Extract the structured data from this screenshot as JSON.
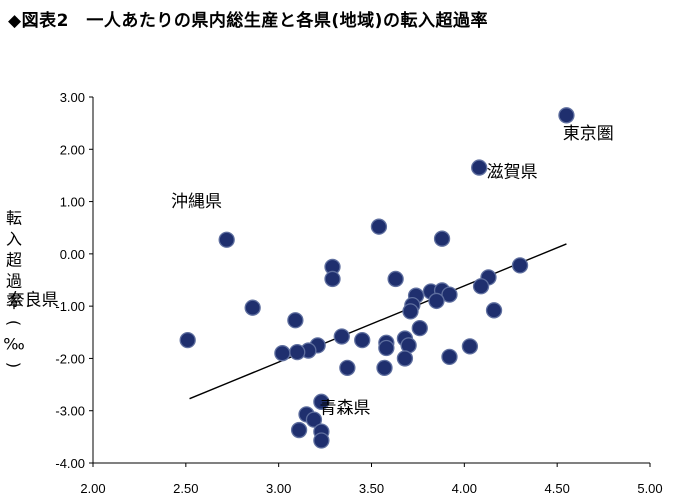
{
  "title": "◆図表2　一人あたりの県内総生産と各県(地域)の転入超過率",
  "chart_data": {
    "type": "scatter",
    "title": "◆図表2　一人あたりの県内総生産と各県(地域)の転入超過率",
    "xlabel": "",
    "ylabel": "転入超過率(‰)",
    "xlim": [
      2.0,
      5.0
    ],
    "ylim": [
      -4.0,
      3.0
    ],
    "xticks": [
      "2.00",
      "2.50",
      "3.00",
      "3.50",
      "4.00",
      "4.50",
      "5.00"
    ],
    "yticks": [
      "3.00",
      "2.00",
      "1.00",
      "0.00",
      "-1.00",
      "-2.00",
      "-3.00",
      "-4.00"
    ],
    "grid": false,
    "legend": "none",
    "marker_color": "#1f2f6e",
    "marker_edge": "#5f6f9f",
    "trendline": {
      "x": [
        2.52,
        4.55
      ],
      "y": [
        -2.77,
        0.19
      ]
    },
    "points": [
      {
        "x": 4.55,
        "y": 2.65
      },
      {
        "x": 4.08,
        "y": 1.65
      },
      {
        "x": 2.72,
        "y": 0.27
      },
      {
        "x": 2.51,
        "y": -1.65
      },
      {
        "x": 3.23,
        "y": -2.83
      },
      {
        "x": 3.54,
        "y": 0.52
      },
      {
        "x": 3.88,
        "y": 0.29
      },
      {
        "x": 3.29,
        "y": -0.25
      },
      {
        "x": 3.29,
        "y": -0.48
      },
      {
        "x": 3.63,
        "y": -0.48
      },
      {
        "x": 4.3,
        "y": -0.22
      },
      {
        "x": 4.13,
        "y": -0.45
      },
      {
        "x": 4.09,
        "y": -0.62
      },
      {
        "x": 3.74,
        "y": -0.8
      },
      {
        "x": 3.82,
        "y": -0.72
      },
      {
        "x": 3.88,
        "y": -0.7
      },
      {
        "x": 3.92,
        "y": -0.78
      },
      {
        "x": 3.85,
        "y": -0.9
      },
      {
        "x": 3.72,
        "y": -0.98
      },
      {
        "x": 3.71,
        "y": -1.1
      },
      {
        "x": 4.16,
        "y": -1.08
      },
      {
        "x": 2.86,
        "y": -1.03
      },
      {
        "x": 3.09,
        "y": -1.27
      },
      {
        "x": 3.76,
        "y": -1.42
      },
      {
        "x": 3.68,
        "y": -1.62
      },
      {
        "x": 3.7,
        "y": -1.75
      },
      {
        "x": 3.58,
        "y": -1.7
      },
      {
        "x": 3.58,
        "y": -1.8
      },
      {
        "x": 3.45,
        "y": -1.65
      },
      {
        "x": 3.34,
        "y": -1.58
      },
      {
        "x": 3.21,
        "y": -1.75
      },
      {
        "x": 3.16,
        "y": -1.85
      },
      {
        "x": 3.1,
        "y": -1.88
      },
      {
        "x": 3.02,
        "y": -1.9
      },
      {
        "x": 3.68,
        "y": -2.0
      },
      {
        "x": 3.37,
        "y": -2.18
      },
      {
        "x": 3.57,
        "y": -2.18
      },
      {
        "x": 3.92,
        "y": -1.97
      },
      {
        "x": 4.03,
        "y": -1.77
      },
      {
        "x": 3.15,
        "y": -3.07
      },
      {
        "x": 3.19,
        "y": -3.17
      },
      {
        "x": 3.11,
        "y": -3.37
      },
      {
        "x": 3.23,
        "y": -3.4
      },
      {
        "x": 3.23,
        "y": -3.57
      }
    ],
    "annotations": [
      {
        "text": "東京圏",
        "x": 4.53,
        "y": 2.2
      },
      {
        "text": "滋賀県",
        "x": 4.12,
        "y": 1.46
      },
      {
        "text": "沖縄県",
        "x": 2.42,
        "y": 0.9
      },
      {
        "text": "奈良県",
        "x": 1.54,
        "y": -0.99
      },
      {
        "text": "青森県",
        "x": 3.22,
        "y": -3.05
      }
    ]
  }
}
